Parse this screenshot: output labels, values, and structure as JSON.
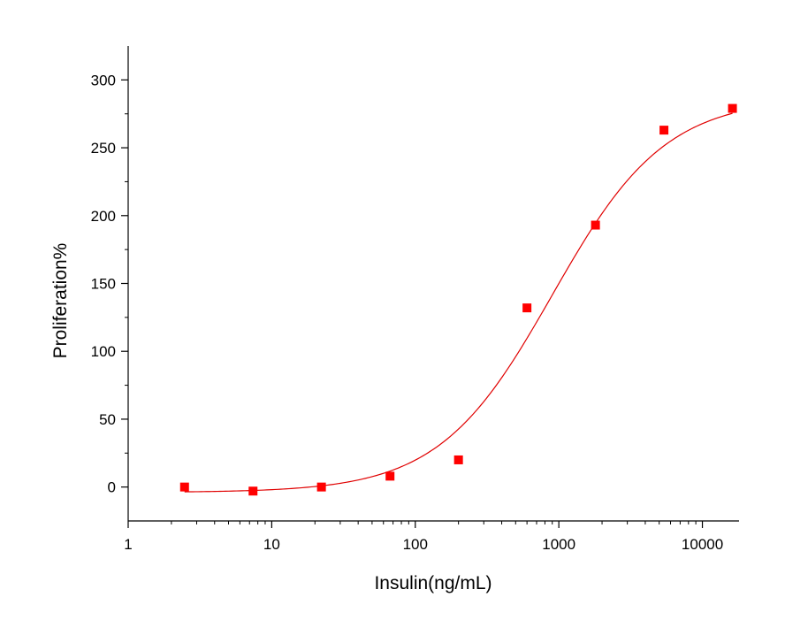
{
  "chart_data": {
    "type": "scatter",
    "xlabel": "Insulin(ng/mL)",
    "ylabel": "Proliferation%",
    "x_scale": "log",
    "xlim": [
      1,
      18000
    ],
    "ylim": [
      -25,
      325
    ],
    "x_ticks": [
      1,
      10,
      100,
      1000,
      10000
    ],
    "x_tick_labels": [
      "1",
      "10",
      "100",
      "1000",
      "10000"
    ],
    "y_ticks": [
      0,
      50,
      100,
      150,
      200,
      250,
      300
    ],
    "y_tick_labels": [
      "0",
      "50",
      "100",
      "150",
      "200",
      "250",
      "300"
    ],
    "grid": false,
    "legend": "none",
    "colors": {
      "marker": "#ff0000",
      "fit": "#e00000",
      "axis": "#000000"
    },
    "series": [
      {
        "marker": "square",
        "x": [
          2.47,
          7.41,
          22.2,
          66.7,
          200,
          600,
          1800,
          5400,
          16200
        ],
        "y": [
          0,
          -3,
          0,
          8,
          20,
          132,
          193,
          263,
          279
        ]
      }
    ],
    "fit": {
      "type": "four-parameter-logistic",
      "bottom": -4,
      "top": 287,
      "ec50": 900,
      "hill": 1.1
    }
  }
}
